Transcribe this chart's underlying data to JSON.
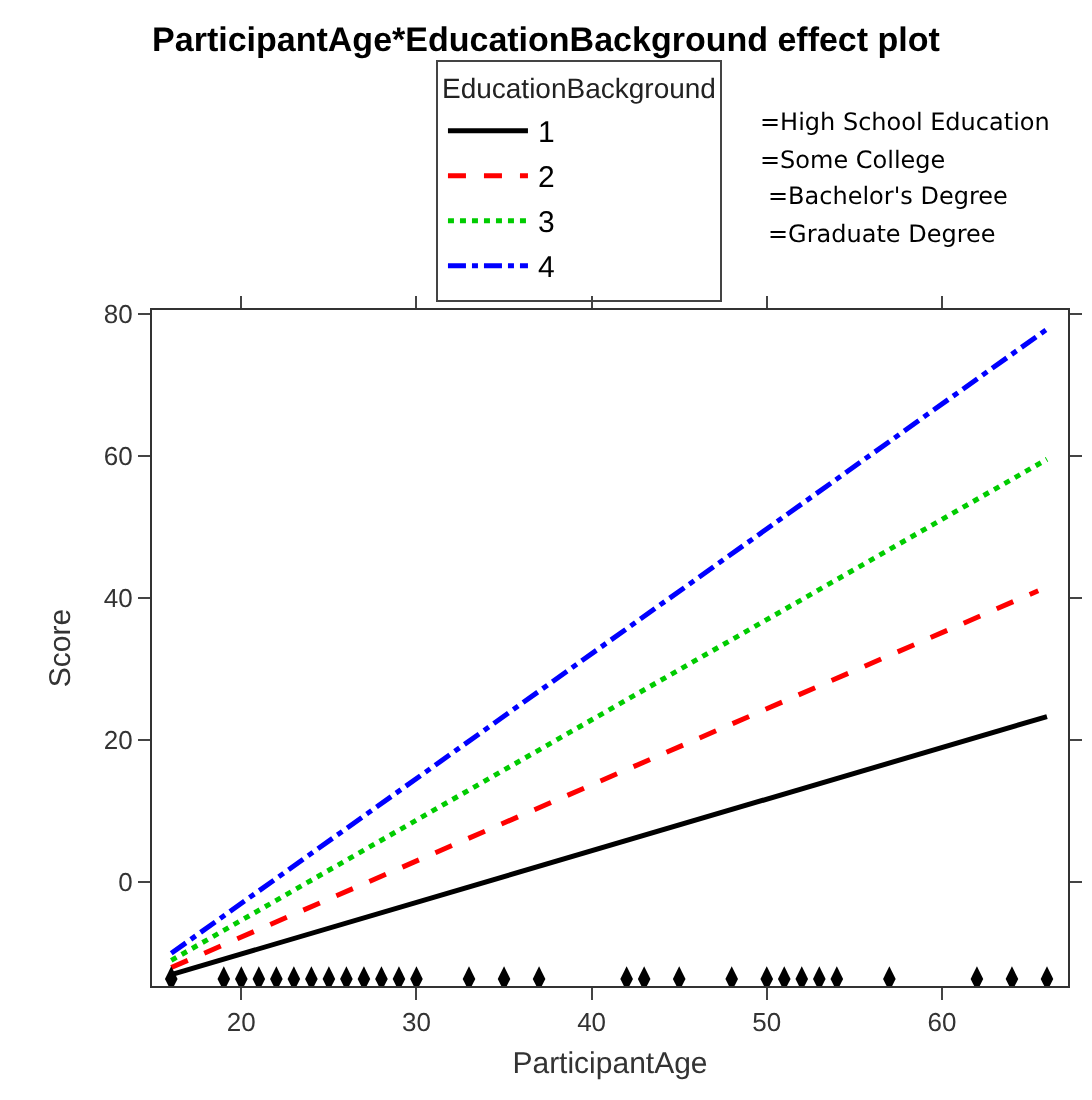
{
  "chart_data": {
    "type": "line",
    "title": "ParticipantAge*EducationBackground effect plot",
    "xlabel": "ParticipantAge",
    "ylabel": "Score",
    "legend_title": "EducationBackground",
    "legend": "top",
    "xlim": [
      14.9,
      67.2
    ],
    "xticks": [
      20,
      30,
      40,
      50,
      60
    ],
    "ylim": [
      -14.6,
      80.5
    ],
    "yticks": [
      0,
      20,
      40,
      60,
      80
    ],
    "grid": false,
    "annotations": [
      "=High School Education",
      "=Some College",
      "=Bachelor's Degree",
      "=Graduate Degree"
    ],
    "series": [
      {
        "name": "1",
        "color": "#000000",
        "line_style": "solid",
        "x": [
          16,
          66
        ],
        "values": [
          -13,
          23.3
        ]
      },
      {
        "name": "2",
        "color": "#ff0000",
        "line_style": "dashed",
        "x": [
          16,
          65.5
        ],
        "values": [
          -12,
          41
        ]
      },
      {
        "name": "3",
        "color": "#00cc00",
        "line_style": "dotted",
        "x": [
          16,
          66
        ],
        "values": [
          -11,
          59.5
        ]
      },
      {
        "name": "4",
        "color": "#0000ff",
        "line_style": "dashdot",
        "x": [
          16,
          66
        ],
        "values": [
          -10,
          77.8
        ]
      },
      {
        "type": "scatter",
        "color": "#000000",
        "x": [
          16,
          19,
          20,
          21,
          22,
          23,
          24,
          25,
          26,
          27,
          28,
          29,
          30,
          33,
          35,
          37,
          42,
          43,
          45,
          48,
          50,
          51,
          52,
          53,
          54,
          57,
          62,
          64,
          66
        ],
        "values": [
          -13.6,
          -13.6,
          -13.6,
          -13.6,
          -13.6,
          -13.6,
          -13.6,
          -13.6,
          -13.6,
          -13.6,
          -13.6,
          -13.6,
          -13.6,
          -13.6,
          -13.6,
          -13.6,
          -13.6,
          -13.6,
          -13.6,
          -13.6,
          -13.6,
          -13.6,
          -13.6,
          -13.6,
          -13.6,
          -13.6,
          -13.6,
          -13.6,
          -13.6
        ]
      }
    ]
  }
}
